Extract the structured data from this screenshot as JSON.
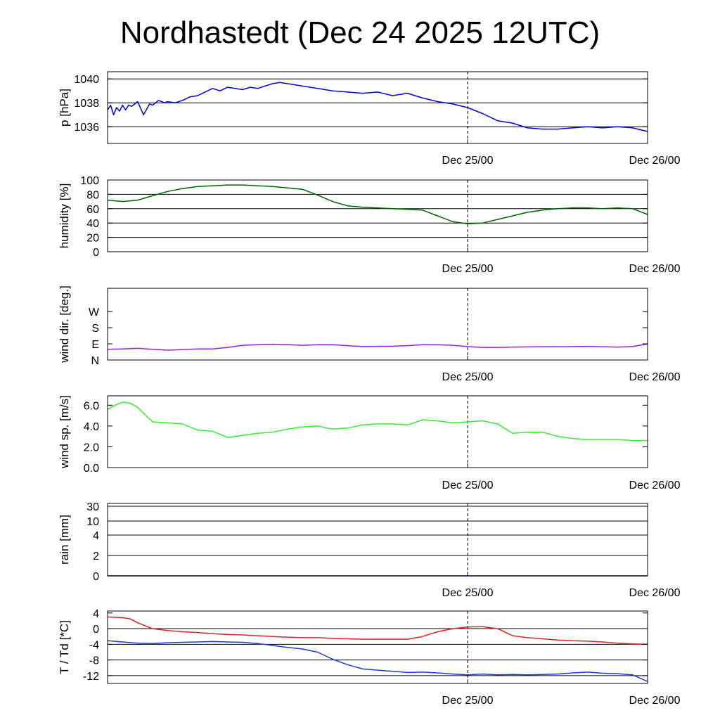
{
  "chart_data": {
    "type": "line",
    "title": "Nordhastedt (Dec 24 2025 12UTC)",
    "x_tick_labels": [
      "Dec 25/00",
      "Dec 26/00"
    ],
    "x_range_hours": [
      0,
      36
    ],
    "panels": [
      {
        "id": "pressure",
        "ylabel": "p [hPa]",
        "ylim": [
          1034.6,
          1040.6
        ],
        "yticks": [
          1036,
          1038,
          1040
        ],
        "ytick_labels": [
          "1036",
          "1038",
          "1040"
        ],
        "gridlines": [
          1036,
          1038,
          1040
        ],
        "series": [
          {
            "color": "#0000dd",
            "x": [
              0,
              0.2,
              0.4,
              0.6,
              0.8,
              1.0,
              1.2,
              1.4,
              1.6,
              2.0,
              2.4,
              2.8,
              3.0,
              3.4,
              3.8,
              4.0,
              4.5,
              5.0,
              5.5,
              6.0,
              6.5,
              7.0,
              7.5,
              8.0,
              8.5,
              9.0,
              9.5,
              10.0,
              10.5,
              11.0,
              11.5,
              12.0,
              13.0,
              14.0,
              15.0,
              16.0,
              17.0,
              18.0,
              19.0,
              20.0,
              21.0,
              22.0,
              23.0,
              24.0,
              25.0,
              26.0,
              27.0,
              28.0,
              29.0,
              30.0,
              31.0,
              32.0,
              33.0,
              34.0,
              35.0,
              36.0
            ],
            "values": [
              1037.4,
              1037.8,
              1037.0,
              1037.6,
              1037.3,
              1037.8,
              1037.4,
              1037.8,
              1037.7,
              1038.1,
              1037.0,
              1037.9,
              1037.8,
              1038.2,
              1038.0,
              1038.1,
              1038.0,
              1038.2,
              1038.5,
              1038.6,
              1038.9,
              1039.2,
              1039.0,
              1039.3,
              1039.2,
              1039.1,
              1039.3,
              1039.2,
              1039.4,
              1039.6,
              1039.7,
              1039.6,
              1039.4,
              1039.2,
              1039.0,
              1038.9,
              1038.8,
              1038.9,
              1038.6,
              1038.8,
              1038.4,
              1038.1,
              1037.9,
              1037.6,
              1037.1,
              1036.5,
              1036.3,
              1035.9,
              1035.8,
              1035.8,
              1035.9,
              1036.0,
              1035.9,
              1036.0,
              1035.9,
              1035.6
            ]
          }
        ]
      },
      {
        "id": "humidity",
        "ylabel": "humidity [%]",
        "ylim": [
          0,
          100
        ],
        "yticks": [
          0,
          20,
          40,
          60,
          80,
          100
        ],
        "ytick_labels": [
          "0",
          "20",
          "40",
          "60",
          "80",
          "100"
        ],
        "gridlines": [
          20,
          40,
          60,
          80
        ],
        "series": [
          {
            "color": "#006400",
            "x": [
              0,
              1,
              2,
              3,
              4,
              5,
              6,
              7,
              8,
              9,
              10,
              11,
              12,
              13,
              14,
              15,
              16,
              17,
              18,
              19,
              20,
              21,
              22,
              23,
              24,
              25,
              26,
              27,
              28,
              29,
              30,
              31,
              32,
              33,
              34,
              35,
              36
            ],
            "values": [
              72,
              70,
              72,
              78,
              84,
              88,
              91,
              92,
              93,
              93,
              92,
              91,
              89,
              87,
              79,
              70,
              64,
              62,
              61,
              60,
              59,
              58,
              50,
              42,
              39,
              40,
              45,
              50,
              55,
              58,
              60,
              61,
              61,
              60,
              61,
              60,
              52
            ]
          }
        ]
      },
      {
        "id": "wind_dir",
        "ylabel": "wind dir. [deg.]",
        "ylim": [
          0,
          400
        ],
        "yticks": [
          0,
          90,
          180,
          270
        ],
        "ytick_labels": [
          "N",
          "E",
          "S",
          "W"
        ],
        "gridlines": [],
        "series": [
          {
            "color": "#9b1ee0",
            "x": [
              0,
              1,
              2,
              3,
              4,
              5,
              6,
              7,
              8,
              9,
              10,
              11,
              12,
              13,
              14,
              15,
              16,
              17,
              18,
              19,
              20,
              21,
              22,
              23,
              24,
              25,
              26,
              27,
              28,
              29,
              30,
              31,
              32,
              33,
              34,
              35,
              36
            ],
            "values": [
              60,
              62,
              65,
              60,
              55,
              58,
              62,
              62,
              70,
              82,
              85,
              88,
              86,
              82,
              85,
              85,
              80,
              75,
              76,
              77,
              80,
              85,
              85,
              82,
              75,
              70,
              70,
              72,
              73,
              74,
              74,
              75,
              76,
              74,
              72,
              75,
              90
            ]
          }
        ]
      },
      {
        "id": "wind_speed",
        "ylabel": "wind sp. [m/s]",
        "ylim": [
          0,
          6.9
        ],
        "yticks": [
          0,
          2,
          4,
          6
        ],
        "ytick_labels": [
          "0.0",
          "2.0",
          "4.0",
          "6.0"
        ],
        "gridlines": [],
        "series": [
          {
            "color": "#33ee33",
            "x": [
              0,
              0.5,
              1,
              1.5,
              2,
              3,
              4,
              5,
              6,
              7,
              8,
              9,
              10,
              11,
              12,
              13,
              14,
              15,
              16,
              17,
              18,
              19,
              20,
              21,
              22,
              23,
              24,
              25,
              26,
              27,
              28,
              29,
              30,
              31,
              32,
              33,
              34,
              35,
              36
            ],
            "values": [
              5.6,
              6.0,
              6.3,
              6.2,
              5.8,
              4.4,
              4.3,
              4.2,
              3.6,
              3.5,
              2.9,
              3.1,
              3.3,
              3.4,
              3.7,
              3.9,
              4.0,
              3.7,
              3.8,
              4.1,
              4.2,
              4.2,
              4.1,
              4.6,
              4.5,
              4.3,
              4.4,
              4.5,
              4.2,
              3.3,
              3.4,
              3.4,
              3.0,
              2.8,
              2.7,
              2.7,
              2.7,
              2.6,
              2.6
            ]
          }
        ]
      },
      {
        "id": "rain",
        "ylabel": "rain [mm]",
        "scale": "nonlinear",
        "yticks": [
          0,
          2,
          4,
          10,
          30
        ],
        "ytick_labels": [
          "0",
          "2",
          "4",
          "10",
          "30"
        ],
        "gridlines": [
          2,
          4,
          10,
          30
        ],
        "series": [
          {
            "color": "#0000aa",
            "x": [
              0,
              36
            ],
            "values": [
              0,
              0
            ]
          }
        ]
      },
      {
        "id": "temperature",
        "ylabel": "T / Td [*C]",
        "ylim": [
          -14,
          4.5
        ],
        "yticks": [
          -12,
          -8,
          -4,
          0,
          4
        ],
        "ytick_labels": [
          "-12",
          "-8",
          "-4",
          "0",
          "4"
        ],
        "gridlines": [
          -12,
          -8,
          -4,
          0
        ],
        "series": [
          {
            "color": "#dd2222",
            "x": [
              0,
              1,
              1.5,
              2,
              3,
              4,
              5,
              6,
              7,
              8,
              9,
              10,
              11,
              12,
              13,
              14,
              15,
              16,
              17,
              18,
              19,
              20,
              21,
              22,
              23,
              24,
              25,
              26,
              27,
              28,
              29,
              30,
              31,
              32,
              33,
              34,
              35,
              36
            ],
            "values": [
              3.0,
              2.8,
              2.5,
              1.5,
              0,
              -0.5,
              -0.8,
              -1.0,
              -1.3,
              -1.5,
              -1.6,
              -1.8,
              -2.0,
              -2.2,
              -2.3,
              -2.3,
              -2.5,
              -2.6,
              -2.7,
              -2.7,
              -2.7,
              -2.7,
              -2.0,
              -0.8,
              0.0,
              0.4,
              0.5,
              0.0,
              -1.8,
              -2.3,
              -2.6,
              -2.9,
              -3.1,
              -3.2,
              -3.4,
              -3.7,
              -3.9,
              -4.0
            ]
          },
          {
            "color": "#1a3ad6",
            "x": [
              0,
              1,
              2,
              3,
              4,
              5,
              6,
              7,
              8,
              9,
              10,
              11,
              12,
              13,
              14,
              15,
              16,
              17,
              18,
              19,
              20,
              21,
              22,
              23,
              24,
              25,
              26,
              27,
              28,
              29,
              30,
              31,
              32,
              33,
              34,
              35,
              36
            ],
            "values": [
              -3.1,
              -3.4,
              -3.7,
              -3.8,
              -3.6,
              -3.5,
              -3.4,
              -3.3,
              -3.4,
              -3.5,
              -3.8,
              -4.3,
              -4.8,
              -5.2,
              -6.0,
              -7.8,
              -9.2,
              -10.3,
              -10.6,
              -10.9,
              -11.2,
              -11.1,
              -11.3,
              -11.6,
              -11.8,
              -11.6,
              -11.8,
              -11.7,
              -11.8,
              -11.7,
              -11.6,
              -11.3,
              -11.1,
              -11.4,
              -11.5,
              -11.8,
              -13.5
            ]
          }
        ]
      }
    ]
  }
}
